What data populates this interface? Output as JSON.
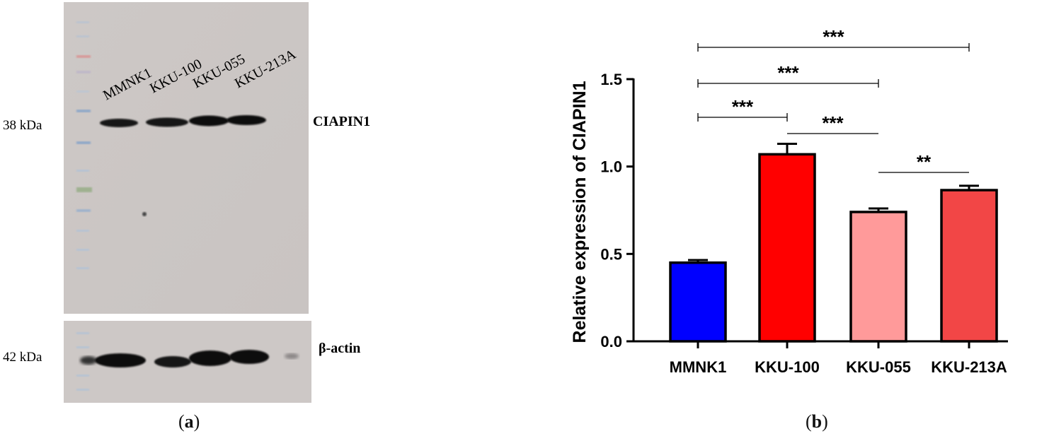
{
  "figure": {
    "panel_a_label": "a",
    "panel_b_label": "b"
  },
  "blot": {
    "lane_labels": [
      "MMNK1",
      "KKU-100",
      "KKU-055",
      "KKU-213A"
    ],
    "top_marker": "38 kDa",
    "bottom_marker": "42 kDa",
    "top_protein": "CIAPIN1",
    "bottom_protein": "β-actin"
  },
  "chart_data": {
    "type": "bar",
    "categories": [
      "MMNK1",
      "KKU-100",
      "KKU-055",
      "KKU-213A"
    ],
    "values": [
      0.45,
      1.07,
      0.74,
      0.865
    ],
    "errors": [
      0.015,
      0.06,
      0.02,
      0.025
    ],
    "colors": [
      "#0000ff",
      "#ff0000",
      "#ff9a9a",
      "#f24646"
    ],
    "ylabel": "Relative expression of CIAPIN1",
    "xlabel": "",
    "ylim": [
      0,
      1.5
    ],
    "yticks": [
      0.0,
      0.5,
      1.0,
      1.5
    ],
    "ytick_labels": [
      "0.0",
      "0.5",
      "1.0",
      "1.5"
    ],
    "significance": [
      {
        "from": "MMNK1",
        "to": "KKU-213A",
        "label": "***"
      },
      {
        "from": "MMNK1",
        "to": "KKU-055",
        "label": "***"
      },
      {
        "from": "MMNK1",
        "to": "KKU-100",
        "label": "***"
      },
      {
        "from": "KKU-100",
        "to": "KKU-055",
        "label": "***"
      },
      {
        "from": "KKU-055",
        "to": "KKU-213A",
        "label": "**"
      }
    ]
  }
}
